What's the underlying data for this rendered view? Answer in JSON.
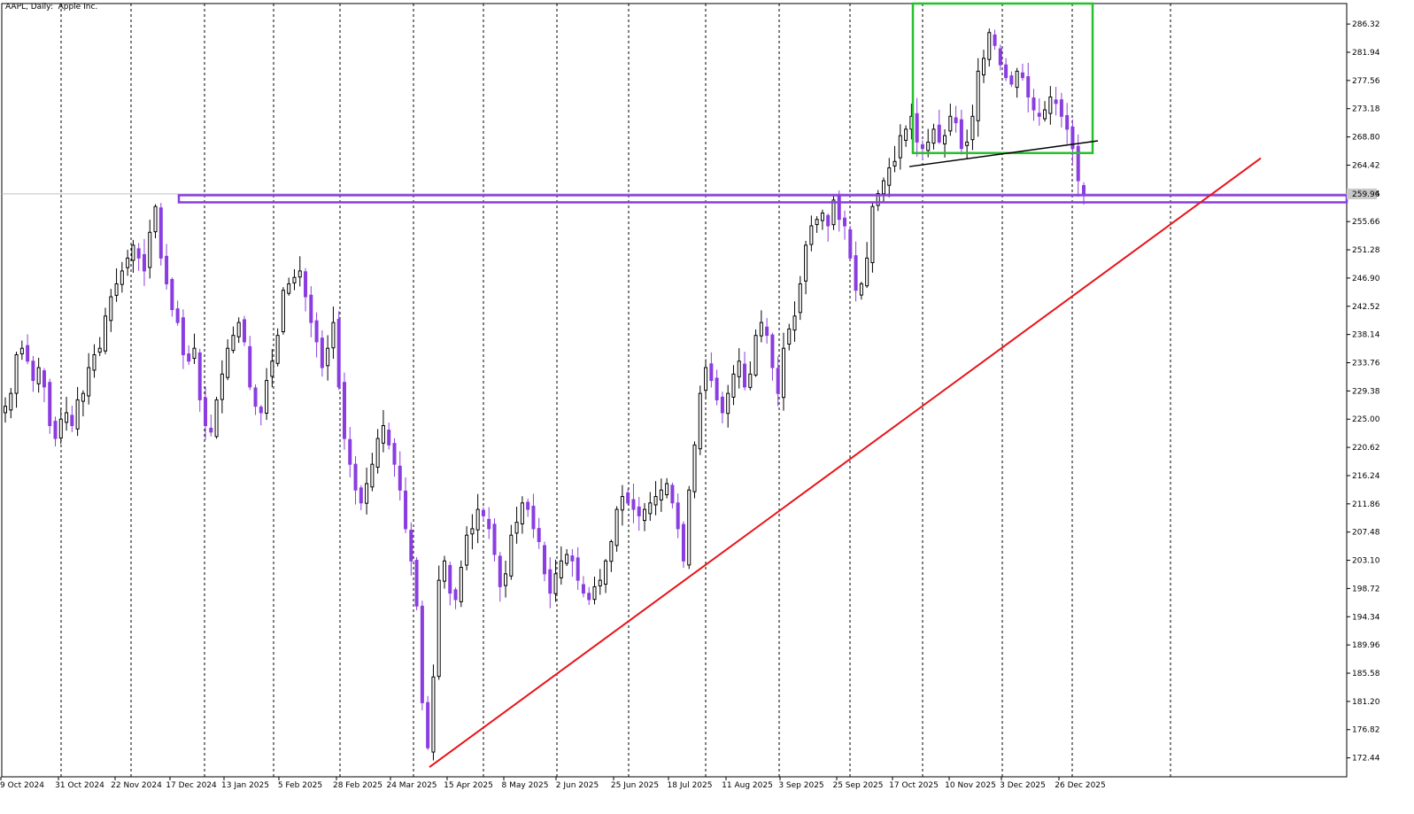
{
  "window": {
    "title": "AAPL, Daily:  Apple Inc."
  },
  "colors": {
    "bull_candle": "#000000",
    "bear_candle": "#8a3de0",
    "grid": "#000000",
    "trendline_red": "#e8141a",
    "resistance": "#8a3de0",
    "box_green": "#27c02a",
    "neckline": "#000000",
    "current_price_bg": "#c8c8c8"
  },
  "chart_data": {
    "type": "candlestick",
    "title": "AAPL, Daily:  Apple Inc.",
    "ylim": [
      169.5,
      289.5
    ],
    "y_ticks": [
      "286.32",
      "281.94",
      "277.56",
      "273.18",
      "268.80",
      "264.42",
      "260.04",
      "255.66",
      "251.28",
      "246.90",
      "242.52",
      "238.14",
      "233.76",
      "229.38",
      "225.00",
      "220.62",
      "216.24",
      "211.86",
      "207.48",
      "203.10",
      "198.72",
      "194.34",
      "189.96",
      "185.58",
      "181.20",
      "176.82",
      "172.44"
    ],
    "x_ticks": [
      "9 Oct 2024",
      "31 Oct 2024",
      "22 Nov 2024",
      "17 Dec 2024",
      "13 Jan 2025",
      "5 Feb 2025",
      "28 Feb 2025",
      "24 Mar 2025",
      "15 Apr 2025",
      "8 May 2025",
      "2 Jun 2025",
      "25 Jun 2025",
      "18 Jul 2025",
      "11 Aug 2025",
      "3 Sep 2025",
      "25 Sep 2025",
      "17 Oct 2025",
      "10 Nov 2025",
      "3 Dec 2025",
      "26 Dec 2025"
    ],
    "current_price": "259.96",
    "close_path": [
      227,
      229,
      235,
      236,
      234,
      231,
      233,
      230,
      224,
      222,
      225,
      226,
      224,
      228,
      229,
      233,
      235,
      236,
      241,
      244,
      246,
      248,
      250,
      252,
      250,
      248,
      254,
      258,
      250,
      246,
      242,
      240,
      235,
      234,
      236,
      228,
      224,
      223,
      228,
      232,
      236,
      238,
      240,
      237,
      230,
      227,
      226,
      231,
      234,
      238,
      245,
      246,
      247,
      248,
      244,
      240,
      237,
      233,
      236,
      240,
      230,
      222,
      218,
      214,
      212,
      215,
      218,
      222,
      224,
      221,
      218,
      214,
      208,
      203,
      196,
      181,
      174,
      185,
      200,
      203,
      198,
      197,
      202,
      207,
      208,
      211,
      210,
      208,
      204,
      199,
      201,
      207,
      209,
      212,
      211,
      208,
      206,
      201,
      198,
      201,
      203,
      204,
      203,
      200,
      198,
      197,
      199,
      200,
      203,
      206,
      211,
      213,
      212,
      211,
      210,
      211,
      212,
      213,
      214,
      215,
      212,
      208,
      203,
      214,
      221,
      229,
      233,
      231,
      228,
      226,
      229,
      232,
      234,
      230,
      232,
      238,
      240,
      238,
      233,
      229,
      236,
      239,
      241,
      246,
      252,
      255,
      256,
      257,
      255,
      259,
      256,
      255,
      250,
      245,
      246,
      250,
      258,
      260,
      262,
      264,
      265,
      269,
      270,
      272,
      268,
      267,
      268,
      270,
      268,
      269,
      272,
      271,
      267,
      268,
      272,
      279,
      281,
      285,
      283,
      280,
      278,
      277,
      279,
      278,
      275,
      273,
      272,
      273,
      275,
      274,
      272,
      270,
      267,
      262,
      260
    ],
    "resistance_level": 259.2,
    "annotations": {
      "red_trendline": {
        "from": [
          "24 Mar 2025",
          171.0
        ],
        "to": [
          "Feb 2026",
          265.5
        ]
      },
      "neckline": {
        "from": [
          "17 Oct 2025",
          264.2
        ],
        "to": [
          "26 Dec 2025",
          267.5
        ]
      },
      "green_box": {
        "top": 289.5,
        "bottom": 266.3
      }
    }
  }
}
